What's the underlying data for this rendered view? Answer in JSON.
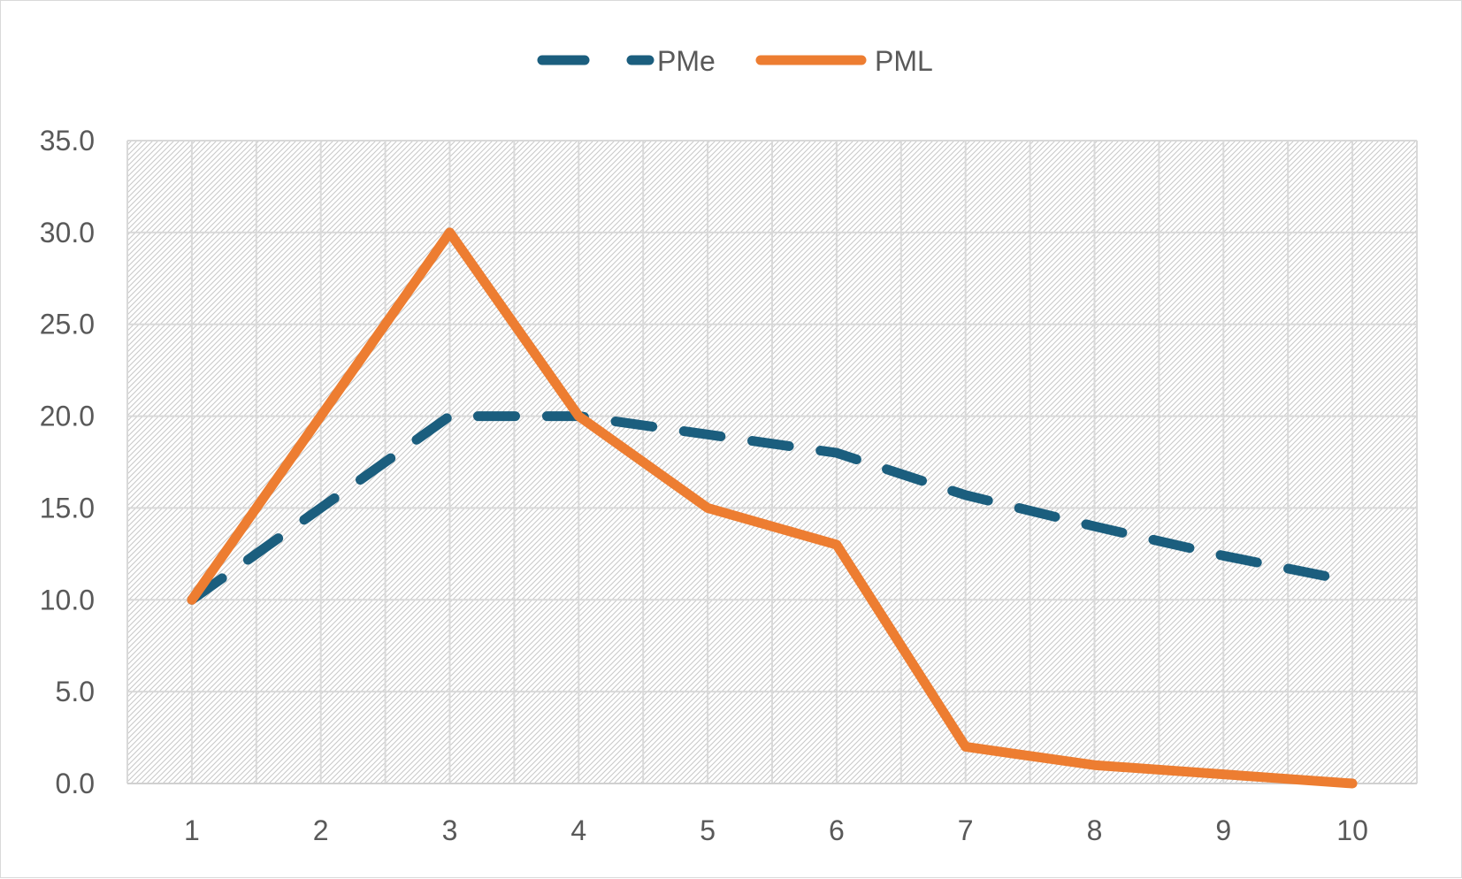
{
  "chart_data": {
    "type": "line",
    "title": "",
    "xlabel": "",
    "ylabel": "",
    "x": [
      1,
      2,
      3,
      4,
      5,
      6,
      7,
      8,
      9,
      10
    ],
    "x_tick_labels": [
      "1",
      "2",
      "3",
      "4",
      "5",
      "6",
      "7",
      "8",
      "9",
      "10"
    ],
    "y_tick_labels": [
      "0.0",
      "5.0",
      "10.0",
      "15.0",
      "20.0",
      "25.0",
      "30.0",
      "35.0"
    ],
    "ylim": [
      0,
      35
    ],
    "y_ticks": [
      0,
      5,
      10,
      15,
      20,
      25,
      30,
      35
    ],
    "grid": true,
    "plot_background": "diagonal-hatch",
    "legend_position": "top",
    "series": [
      {
        "name": "PMe",
        "values": [
          10.0,
          15.0,
          20.0,
          20.0,
          19.0,
          18.0,
          15.7,
          14.0,
          12.4,
          11.0
        ],
        "color": "#1b5e7e",
        "line_style": "dashed"
      },
      {
        "name": "PML",
        "values": [
          10.0,
          20.0,
          30.0,
          20.0,
          15.0,
          13.0,
          2.0,
          1.0,
          0.5,
          0.0
        ],
        "color": "#ed7d31",
        "line_style": "solid"
      }
    ]
  }
}
